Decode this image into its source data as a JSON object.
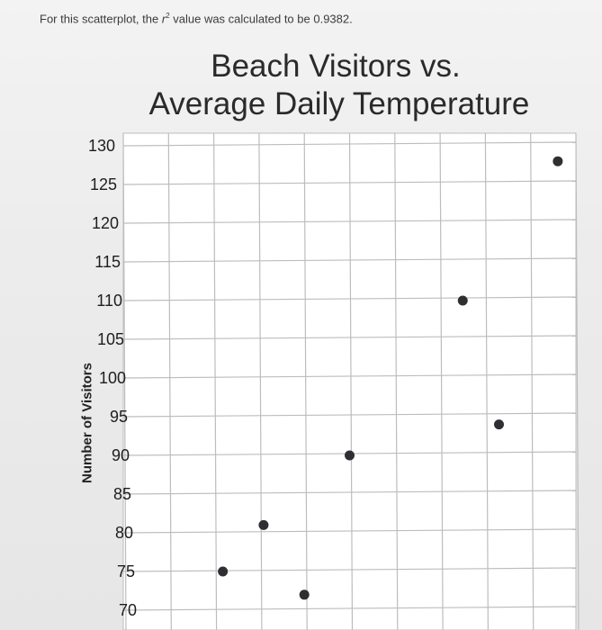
{
  "intro": {
    "prefix": "For this scatterplot, the ",
    "r_symbol": "r",
    "sup": "2",
    "suffix": " value was calculated to be 0.9382."
  },
  "chart_data": {
    "type": "scatter",
    "title_line1": "Beach Visitors vs.",
    "title_line2": "Average Daily Temperature",
    "xlabel": "",
    "ylabel": "Number of Visitors",
    "ylim": [
      68,
      131
    ],
    "y_ticks": [
      130,
      125,
      120,
      115,
      110,
      105,
      100,
      95,
      90,
      85,
      80,
      75,
      70
    ],
    "x_gridlines": 10,
    "points": [
      {
        "x": 2.2,
        "y": 75
      },
      {
        "x": 3.1,
        "y": 81
      },
      {
        "x": 4.0,
        "y": 72
      },
      {
        "x": 5.0,
        "y": 90
      },
      {
        "x": 7.5,
        "y": 110
      },
      {
        "x": 8.3,
        "y": 94
      },
      {
        "x": 9.6,
        "y": 128
      }
    ],
    "colors": {
      "grid": "#bdbdbd",
      "plot_bg": "#ffffff",
      "point": "#2f2f33"
    }
  }
}
